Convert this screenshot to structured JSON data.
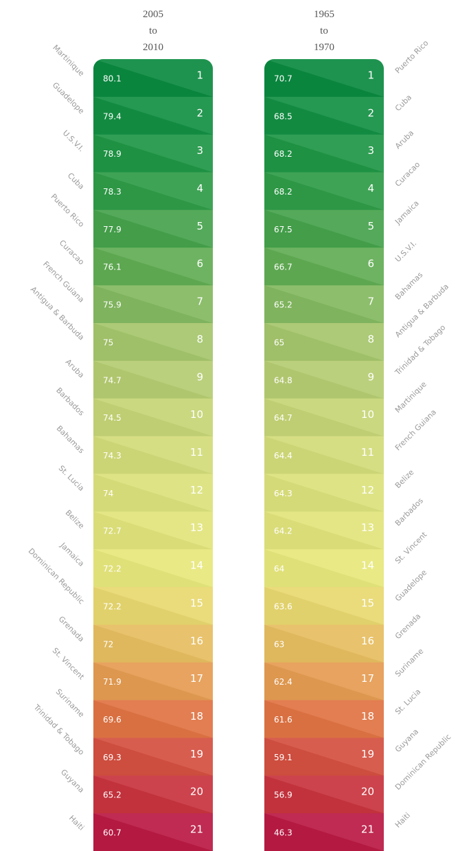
{
  "columns": [
    {
      "title": [
        "2005",
        "to",
        "2010"
      ],
      "rows": [
        {
          "country": "Martinique",
          "value": 80.1,
          "rank": 1
        },
        {
          "country": "Guadelope",
          "value": 79.4,
          "rank": 2
        },
        {
          "country": "U.S.V.I.",
          "value": 78.9,
          "rank": 3
        },
        {
          "country": "Cuba",
          "value": 78.3,
          "rank": 4
        },
        {
          "country": "Puerto Rico",
          "value": 77.9,
          "rank": 5
        },
        {
          "country": "Curacao",
          "value": 76.1,
          "rank": 6
        },
        {
          "country": "French Guiana",
          "value": 75.9,
          "rank": 7
        },
        {
          "country": "Antigua & Barbuda",
          "value": 75,
          "rank": 8
        },
        {
          "country": "Aruba",
          "value": 74.7,
          "rank": 9
        },
        {
          "country": "Barbados",
          "value": 74.5,
          "rank": 10
        },
        {
          "country": "Bahamas",
          "value": 74.3,
          "rank": 11
        },
        {
          "country": "St. Lucia",
          "value": 74,
          "rank": 12
        },
        {
          "country": "Belize",
          "value": 72.7,
          "rank": 13
        },
        {
          "country": "Jamaica",
          "value": 72.2,
          "rank": 14
        },
        {
          "country": "Dominican Republic",
          "value": 72.2,
          "rank": 15
        },
        {
          "country": "Grenada",
          "value": 72,
          "rank": 16
        },
        {
          "country": "St. Vincent",
          "value": 71.9,
          "rank": 17
        },
        {
          "country": "Suriname",
          "value": 69.6,
          "rank": 18
        },
        {
          "country": "Trinidad & Tobago",
          "value": 69.3,
          "rank": 19
        },
        {
          "country": "Guyana",
          "value": 65.2,
          "rank": 20
        },
        {
          "country": "Haiti",
          "value": 60.7,
          "rank": 21
        }
      ]
    },
    {
      "title": [
        "1965",
        "to",
        "1970"
      ],
      "rows": [
        {
          "country": "Puerto Rico",
          "value": 70.7,
          "rank": 1
        },
        {
          "country": "Cuba",
          "value": 68.5,
          "rank": 2
        },
        {
          "country": "Aruba",
          "value": 68.2,
          "rank": 3
        },
        {
          "country": "Curacao",
          "value": 68.2,
          "rank": 4
        },
        {
          "country": "Jamaica",
          "value": 67.5,
          "rank": 5
        },
        {
          "country": "U.S.V.I.",
          "value": 66.7,
          "rank": 6
        },
        {
          "country": "Bahamas",
          "value": 65.2,
          "rank": 7
        },
        {
          "country": "Antigua & Barbuda",
          "value": 65,
          "rank": 8
        },
        {
          "country": "Trinidad & Tobago",
          "value": 64.8,
          "rank": 9
        },
        {
          "country": "Martinique",
          "value": 64.7,
          "rank": 10
        },
        {
          "country": "French Guiana",
          "value": 64.4,
          "rank": 11
        },
        {
          "country": "Belize",
          "value": 64.3,
          "rank": 12
        },
        {
          "country": "Barbados",
          "value": 64.2,
          "rank": 13
        },
        {
          "country": "St. Vincent",
          "value": 64,
          "rank": 14
        },
        {
          "country": "Guadelope",
          "value": 63.6,
          "rank": 15
        },
        {
          "country": "Grenada",
          "value": 63,
          "rank": 16
        },
        {
          "country": "Suriname",
          "value": 62.4,
          "rank": 17
        },
        {
          "country": "St. Lucia",
          "value": 61.6,
          "rank": 18
        },
        {
          "country": "Guyana",
          "value": 59.1,
          "rank": 19
        },
        {
          "country": "Dominican Republic",
          "value": 56.9,
          "rank": 20
        },
        {
          "country": "Haiti",
          "value": 46.3,
          "rank": 21
        }
      ]
    }
  ]
}
